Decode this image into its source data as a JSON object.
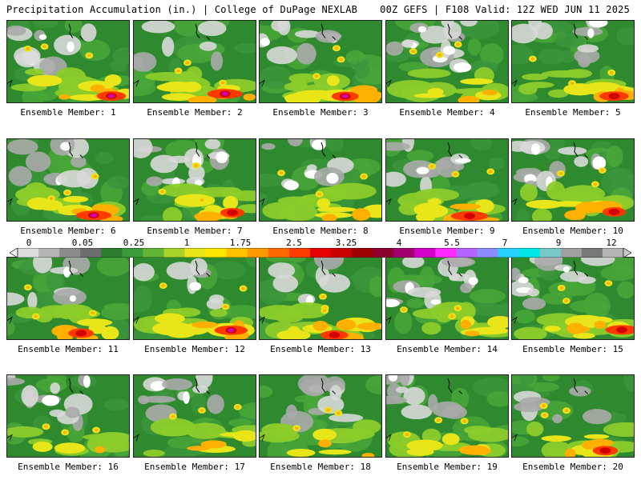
{
  "header": {
    "left_title": "Precipitation Accumulation (in.) | College of DuPage NEXLAB",
    "right_title": "00Z GEFS | F108 Valid: 12Z WED JUN 11 2025"
  },
  "colorbar": {
    "labels": [
      "0",
      "0.05",
      "0.25",
      "1",
      "1.75",
      "2.5",
      "3.25",
      "4",
      "5.5",
      "7",
      "9",
      "12"
    ],
    "colors": [
      "#dcdcdc",
      "#b4b4b4",
      "#8c8c8c",
      "#6e6e6e",
      "#2e7d2e",
      "#3a9a3a",
      "#62b532",
      "#a8d22a",
      "#e6e619",
      "#ffe600",
      "#ffc000",
      "#ff9900",
      "#ff6a00",
      "#ff3c00",
      "#e60000",
      "#c80000",
      "#a00000",
      "#8c0030",
      "#a0006e",
      "#d200c8",
      "#ff28ff",
      "#b464ff",
      "#8c8cff",
      "#28d2ff",
      "#00e6e6",
      "#78c8c8",
      "#a0a0a0",
      "#787878",
      "#b4b4b4"
    ]
  },
  "members": [
    {
      "label": "Ensemble Member: 1"
    },
    {
      "label": "Ensemble Member: 2"
    },
    {
      "label": "Ensemble Member: 3"
    },
    {
      "label": "Ensemble Member: 4"
    },
    {
      "label": "Ensemble Member: 5"
    },
    {
      "label": "Ensemble Member: 6"
    },
    {
      "label": "Ensemble Member: 7"
    },
    {
      "label": "Ensemble Member: 8"
    },
    {
      "label": "Ensemble Member: 9"
    },
    {
      "label": "Ensemble Member: 10"
    },
    {
      "label": "Ensemble Member: 11"
    },
    {
      "label": "Ensemble Member: 12"
    },
    {
      "label": "Ensemble Member: 13"
    },
    {
      "label": "Ensemble Member: 14"
    },
    {
      "label": "Ensemble Member: 15"
    },
    {
      "label": "Ensemble Member: 16"
    },
    {
      "label": "Ensemble Member: 17"
    },
    {
      "label": "Ensemble Member: 18"
    },
    {
      "label": "Ensemble Member: 19"
    },
    {
      "label": "Ensemble Member: 20"
    }
  ]
}
